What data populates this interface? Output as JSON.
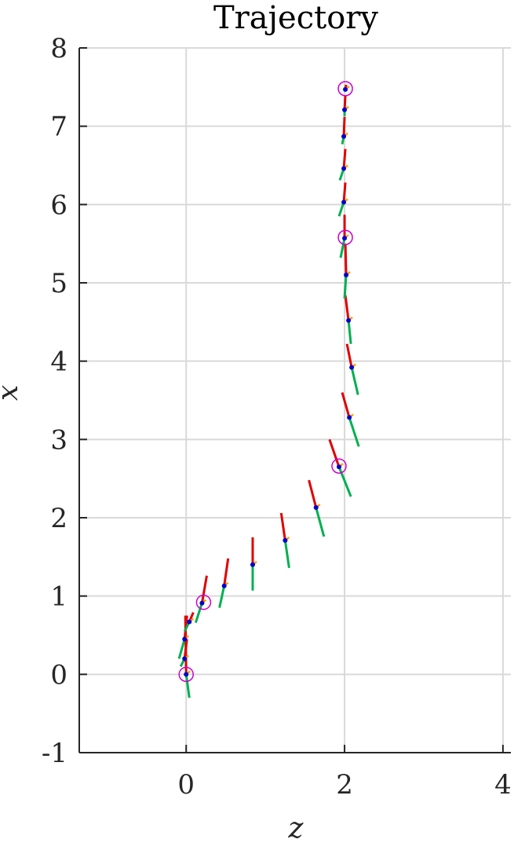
{
  "chart_data": {
    "type": "scatter",
    "title": "Trajectory",
    "xlabel": "z",
    "ylabel": "x",
    "xlim": [
      -1.35,
      4.1
    ],
    "ylim": [
      -1,
      8
    ],
    "xticks": [
      0,
      2,
      4
    ],
    "yticks": [
      -1,
      0,
      1,
      2,
      3,
      4,
      5,
      6,
      7,
      8
    ],
    "xtick_labels": [
      "0",
      "2",
      "4"
    ],
    "ytick_labels": [
      "-1",
      "0",
      "1",
      "2",
      "3",
      "4",
      "5",
      "6",
      "7",
      "8"
    ],
    "grid": true,
    "colors": {
      "point": "#0000cc",
      "red_axis": "#e00000",
      "green_axis": "#00b050",
      "orange_axis": "#ffa000",
      "keyframe_circle": "#cc00cc",
      "grid": "#d9d9d9",
      "axis": "#262626"
    },
    "poses": [
      {
        "z": 0.0,
        "x": 0.0,
        "rz": -0.01,
        "rx": 0.75,
        "gz": 0.04,
        "gx": -0.3
      },
      {
        "z": -0.02,
        "x": 0.2,
        "rz": 0.03,
        "rx": 0.25,
        "gz": -0.05,
        "gx": -0.1
      },
      {
        "z": -0.02,
        "x": 0.45,
        "rz": 0.03,
        "rx": 0.3,
        "gz": -0.07,
        "gx": -0.25
      },
      {
        "z": 0.04,
        "x": 0.67,
        "rz": 0.05,
        "rx": 0.12,
        "gz": -0.06,
        "gx": -0.12
      },
      {
        "z": 0.2,
        "x": 0.91,
        "rz": 0.06,
        "rx": 0.35,
        "gz": -0.08,
        "gx": -0.25
      },
      {
        "z": 0.48,
        "x": 1.13,
        "rz": 0.05,
        "rx": 0.35,
        "gz": -0.06,
        "gx": -0.28
      },
      {
        "z": 0.84,
        "x": 1.4,
        "rz": 0.0,
        "rx": 0.35,
        "gz": 0.0,
        "gx": -0.33
      },
      {
        "z": 1.25,
        "x": 1.71,
        "rz": -0.05,
        "rx": 0.35,
        "gz": 0.05,
        "gx": -0.35
      },
      {
        "z": 1.64,
        "x": 2.13,
        "rz": -0.09,
        "rx": 0.35,
        "gz": 0.1,
        "gx": -0.37
      },
      {
        "z": 1.93,
        "x": 2.65,
        "rz": -0.12,
        "rx": 0.35,
        "gz": 0.15,
        "gx": -0.38
      },
      {
        "z": 2.06,
        "x": 3.28,
        "rz": -0.09,
        "rx": 0.32,
        "gz": 0.12,
        "gx": -0.37
      },
      {
        "z": 2.09,
        "x": 3.92,
        "rz": -0.06,
        "rx": 0.3,
        "gz": 0.08,
        "gx": -0.35
      },
      {
        "z": 2.05,
        "x": 4.52,
        "rz": -0.04,
        "rx": 0.32,
        "gz": 0.03,
        "gx": -0.3
      },
      {
        "z": 2.02,
        "x": 5.1,
        "rz": -0.01,
        "rx": 0.4,
        "gz": -0.02,
        "gx": -0.3
      },
      {
        "z": 2.0,
        "x": 5.57,
        "rz": 0.0,
        "rx": 0.3,
        "gz": -0.05,
        "gx": -0.25
      },
      {
        "z": 1.99,
        "x": 6.03,
        "rz": 0.02,
        "rx": 0.25,
        "gz": -0.06,
        "gx": -0.18
      },
      {
        "z": 1.99,
        "x": 6.46,
        "rz": 0.02,
        "rx": 0.25,
        "gz": -0.05,
        "gx": -0.15
      },
      {
        "z": 1.99,
        "x": 6.87,
        "rz": 0.01,
        "rx": 0.25,
        "gz": -0.02,
        "gx": -0.1
      },
      {
        "z": 2.0,
        "x": 7.21,
        "rz": 0.01,
        "rx": 0.18,
        "gz": 0.0,
        "gx": -0.08
      },
      {
        "z": 2.01,
        "x": 7.47,
        "rz": 0.01,
        "rx": 0.06,
        "gz": 0.0,
        "gx": -0.02
      }
    ],
    "keyframes": [
      {
        "z": 0.0,
        "x": 0.0
      },
      {
        "z": 0.22,
        "x": 0.92
      },
      {
        "z": 1.93,
        "x": 2.66
      },
      {
        "z": 2.01,
        "x": 5.58
      },
      {
        "z": 2.01,
        "x": 7.48
      }
    ]
  }
}
